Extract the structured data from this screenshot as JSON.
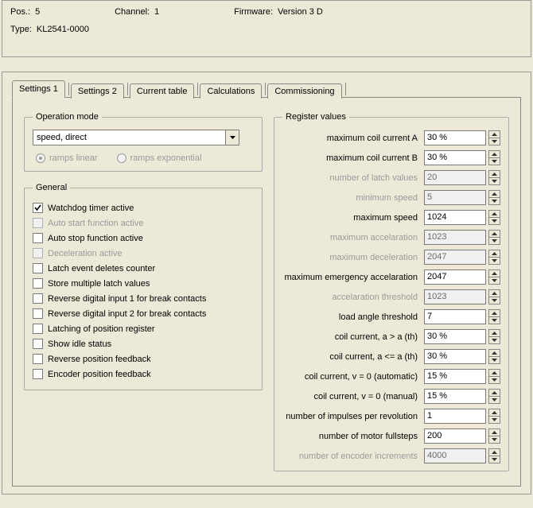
{
  "colors": {
    "bg": "#ece9d8",
    "border": "#888888",
    "text": "#000000",
    "disabled_text": "#9a9a9a",
    "input_bg": "#ffffff"
  },
  "info": {
    "pos_label": "Pos.:",
    "pos_value": "5",
    "channel_label": "Channel:",
    "channel_value": "1",
    "firmware_label": "Firmware:",
    "firmware_value": "Version 3 D",
    "type_label": "Type:",
    "type_value": "KL2541-0000"
  },
  "tabs": {
    "items": [
      {
        "label": "Settings 1",
        "active": true
      },
      {
        "label": "Settings 2",
        "active": false
      },
      {
        "label": "Current table",
        "active": false
      },
      {
        "label": "Calculations",
        "active": false
      },
      {
        "label": "Commissioning",
        "active": false
      }
    ]
  },
  "operation_mode": {
    "legend": "Operation mode",
    "selected": "speed, direct",
    "ramps_linear_label": "ramps linear",
    "ramps_exponential_label": "ramps exponential",
    "ramps_linear_selected": true,
    "ramps_enabled": false
  },
  "general": {
    "legend": "General",
    "items": [
      {
        "label": "Watchdog timer active",
        "checked": true,
        "enabled": true
      },
      {
        "label": "Auto start function active",
        "checked": false,
        "enabled": false
      },
      {
        "label": "Auto stop function active",
        "checked": false,
        "enabled": true
      },
      {
        "label": "Deceleration active",
        "checked": false,
        "enabled": false
      },
      {
        "label": "Latch event deletes counter",
        "checked": false,
        "enabled": true
      },
      {
        "label": "Store multiple latch values",
        "checked": false,
        "enabled": true
      },
      {
        "label": "Reverse digital input 1 for break contacts",
        "checked": false,
        "enabled": true
      },
      {
        "label": "Reverse digital input 2 for break contacts",
        "checked": false,
        "enabled": true
      },
      {
        "label": "Latching of position register",
        "checked": false,
        "enabled": true
      },
      {
        "label": "Show idle status",
        "checked": false,
        "enabled": true
      },
      {
        "label": "Reverse position feedback",
        "checked": false,
        "enabled": true
      },
      {
        "label": "Encoder position feedback",
        "checked": false,
        "enabled": true
      }
    ]
  },
  "registers": {
    "legend": "Register values",
    "items": [
      {
        "label": "maximum coil current A",
        "value": "30 %",
        "enabled": true
      },
      {
        "label": "maximum coil current B",
        "value": "30 %",
        "enabled": true
      },
      {
        "label": "number of latch values",
        "value": "20",
        "enabled": false
      },
      {
        "label": "minimum speed",
        "value": "5",
        "enabled": false
      },
      {
        "label": "maximum speed",
        "value": "1024",
        "enabled": true
      },
      {
        "label": "maximum accelaration",
        "value": "1023",
        "enabled": false
      },
      {
        "label": "maximum deceleration",
        "value": "2047",
        "enabled": false
      },
      {
        "label": "maximum emergency accelaration",
        "value": "2047",
        "enabled": true
      },
      {
        "label": "accelaration threshold",
        "value": "1023",
        "enabled": false
      },
      {
        "label": "load angle threshold",
        "value": "7",
        "enabled": true
      },
      {
        "label": "coil current, a > a (th)",
        "value": "30 %",
        "enabled": true
      },
      {
        "label": "coil current, a <= a (th)",
        "value": "30 %",
        "enabled": true
      },
      {
        "label": "coil current, v = 0 (automatic)",
        "value": "15 %",
        "enabled": true
      },
      {
        "label": "coil current, v = 0 (manual)",
        "value": "15 %",
        "enabled": true
      },
      {
        "label": "number of impulses per revolution",
        "value": "1",
        "enabled": true
      },
      {
        "label": "number of motor fullsteps",
        "value": "200",
        "enabled": true
      },
      {
        "label": "number of encoder increments",
        "value": "4000",
        "enabled": false
      }
    ]
  }
}
